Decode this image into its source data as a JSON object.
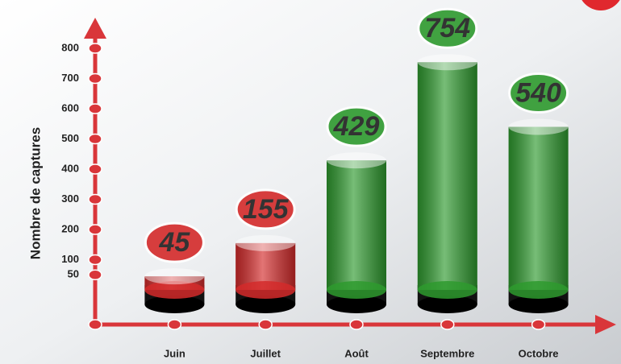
{
  "chart_data": {
    "type": "bar",
    "y_label": "Nombre de captures",
    "categories": [
      "Juin",
      "Juillet",
      "Août",
      "Septembre",
      "Octobre"
    ],
    "values": [
      45,
      155,
      429,
      754,
      540
    ],
    "colors": [
      "#d42a2a",
      "#d42a2a",
      "#2e9a2e",
      "#2e9a2e",
      "#2e9a2e"
    ],
    "ylim": [
      0,
      800
    ],
    "yticks": [
      50,
      100,
      200,
      300,
      400,
      500,
      600,
      700,
      800
    ],
    "axis_color": "#d9363a"
  }
}
